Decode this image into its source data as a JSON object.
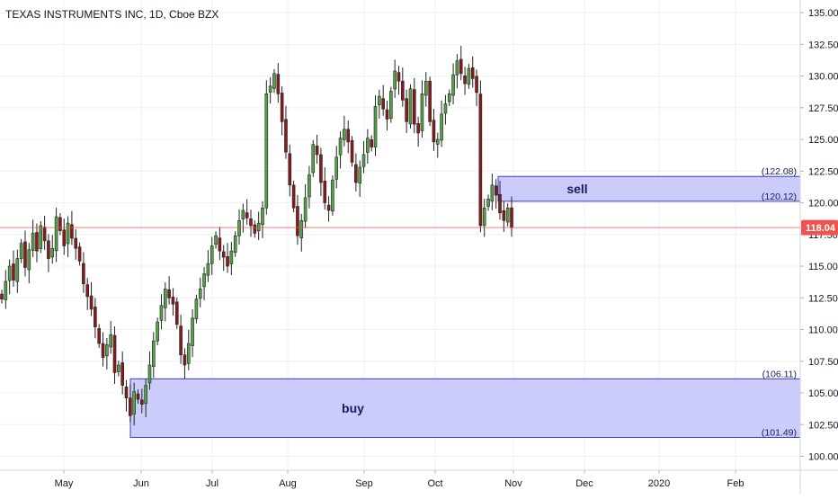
{
  "chart_data": {
    "type": "candlestick",
    "title": "TEXAS INSTRUMENTS INC, 1D, Cboe BZX",
    "ylim": [
      98.9,
      136.0
    ],
    "y_ticks": [
      "135.00",
      "132.50",
      "130.00",
      "127.50",
      "125.00",
      "122.50",
      "120.00",
      "117.50",
      "115.00",
      "112.50",
      "110.00",
      "107.50",
      "105.00",
      "102.50",
      "100.00"
    ],
    "x_ticks": [
      "May",
      "Jun",
      "Jul",
      "Aug",
      "Sep",
      "Oct",
      "Nov",
      "Dec",
      "2020",
      "Feb"
    ],
    "last_price": {
      "label": "118.04",
      "value": 118.04,
      "color": "#ef5350"
    },
    "colors": {
      "up": "#26a69a",
      "down": "#ef5350",
      "candle_up": "#53a346",
      "candle_down": "#8b1a1a",
      "zone_fill": "#c9c9fb",
      "zone_border": "#3b3bd0"
    },
    "grid": true,
    "zones": [
      {
        "label": "sell",
        "top": 122.08,
        "bottom": 120.12,
        "top_label": "(122.08)",
        "bottom_label": "(120.12)"
      },
      {
        "label": "buy",
        "top": 106.11,
        "bottom": 101.49,
        "top_label": "(106.11)",
        "bottom_label": "(101.49)"
      }
    ],
    "closes": [
      112.4,
      113.8,
      115.0,
      113.9,
      115.6,
      116.8,
      114.9,
      116.3,
      117.6,
      116.2,
      118.2,
      117.0,
      115.6,
      116.4,
      118.9,
      117.8,
      116.6,
      118.4,
      117.2,
      116.4,
      115.4,
      113.6,
      112.6,
      111.6,
      110.2,
      108.9,
      107.8,
      108.8,
      109.6,
      106.6,
      107.2,
      105.6,
      104.6,
      103.2,
      105.1,
      104.5,
      104.1,
      105.6,
      107.2,
      109.1,
      110.6,
      111.9,
      113.2,
      112.5,
      112.0,
      110.4,
      108.0,
      107.2,
      108.9,
      110.9,
      112.4,
      113.2,
      114.4,
      115.2,
      116.6,
      117.4,
      116.2,
      115.7,
      115.0,
      116.2,
      117.4,
      118.6,
      119.4,
      118.8,
      118.2,
      117.6,
      118.4,
      119.6,
      128.6,
      129.2,
      130.2,
      128.6,
      126.4,
      124.0,
      121.4,
      119.6,
      117.4,
      118.6,
      120.4,
      122.2,
      124.6,
      123.8,
      121.6,
      120.0,
      119.4,
      121.8,
      123.6,
      125.1,
      125.8,
      124.8,
      123.2,
      121.6,
      122.8,
      123.8,
      125.1,
      124.4,
      127.6,
      128.4,
      127.4,
      126.6,
      128.8,
      130.4,
      129.6,
      128.1,
      126.4,
      129.0,
      126.2,
      125.5,
      128.6,
      129.6,
      126.4,
      124.8,
      125.0,
      127.0,
      127.8,
      128.6,
      130.1,
      131.2,
      130.2,
      129.4,
      130.6,
      129.8,
      128.7,
      118.2,
      119.6,
      120.3,
      121.4,
      120.6,
      119.2,
      118.6,
      119.6,
      118.04
    ]
  }
}
